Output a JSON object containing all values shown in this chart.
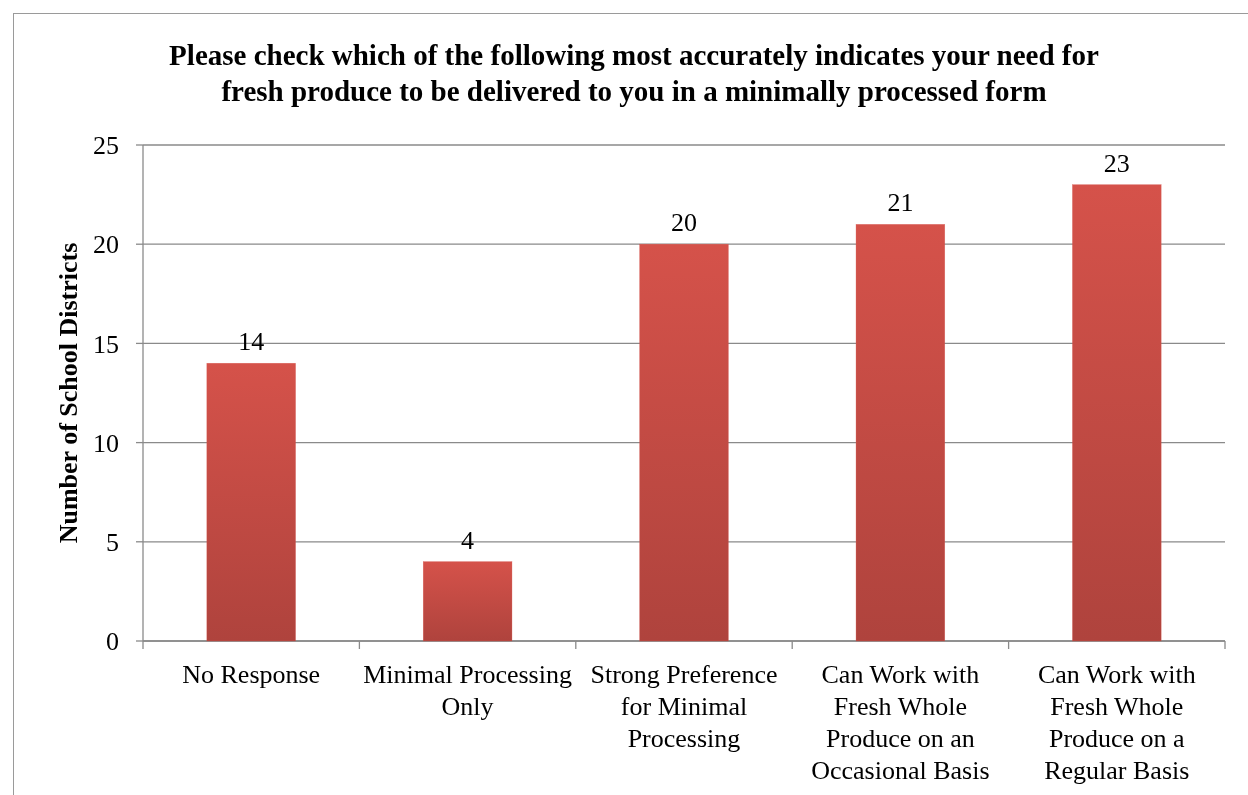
{
  "chart_data": {
    "type": "bar",
    "title": "Please check which of the following most accurately indicates your need for fresh produce to be delivered to you in a minimally processed form",
    "ylabel": "Number of School Districts",
    "categories": [
      "No Response",
      "Minimal Processing Only",
      "Strong Preference for Minimal Processing",
      "Can Work with Fresh Whole Produce on an Occasional Basis",
      "Can Work with Fresh Whole Produce on a Regular Basis"
    ],
    "values": [
      14,
      4,
      20,
      21,
      23
    ],
    "color": "#d5524a",
    "ylim": [
      0,
      25
    ],
    "yticks": [
      0,
      5,
      10,
      15,
      20,
      25
    ],
    "grid": "y",
    "data_labels": true
  }
}
